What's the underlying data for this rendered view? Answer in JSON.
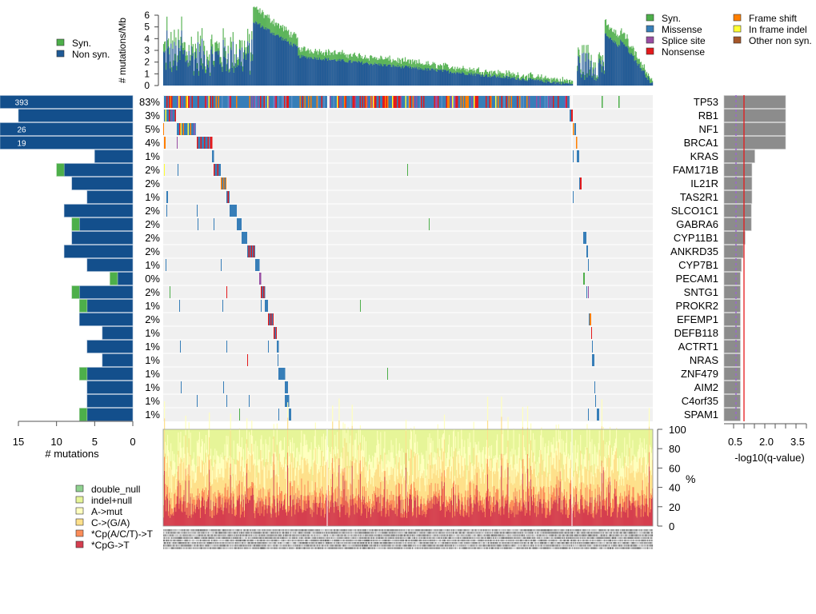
{
  "chart_data": [
    {
      "id": "mutation_burden",
      "type": "bar",
      "stacked": true,
      "ylabel": "# mutations/Mb",
      "ylim": [
        0,
        6
      ],
      "yticks": [
        "0",
        "1",
        "2",
        "3",
        "4",
        "5",
        "6"
      ],
      "legend": {
        "position": "top-left",
        "entries": [
          {
            "label": "Syn.",
            "color": "#4daf4a"
          },
          {
            "label": "Non syn.",
            "color": "#1f5a96"
          }
        ]
      },
      "sample_count": 600,
      "profile_description": "Per-sample stacked bars sorted by oncoprint order; values are approximate profile segments",
      "segments": [
        {
          "samples": "1-50",
          "nonsyn_range": [
            0.8,
            4.8
          ],
          "total_peak": 6.3
        },
        {
          "samples": "50-110",
          "nonsyn_range": [
            1.0,
            4.5
          ],
          "total_peak": 5.9
        },
        {
          "samples": "110-165",
          "nonsyn_range": [
            2.6,
            5.3
          ],
          "total_peak": 6.6
        },
        {
          "samples": "165-505",
          "nonsyn_range": [
            0.1,
            2.6
          ],
          "total_peak": 3.3
        },
        {
          "samples": "505-560",
          "nonsyn_range": [
            0.2,
            3.4
          ],
          "total_peak": 4.4
        },
        {
          "samples": "560-600",
          "nonsyn_range": [
            0.1,
            4.5
          ],
          "total_peak": 5.3
        }
      ]
    },
    {
      "id": "oncoprint",
      "type": "heatmap",
      "legend": {
        "position": "top-right",
        "entries": [
          {
            "label": "Syn.",
            "color": "#4daf4a"
          },
          {
            "label": "Missense",
            "color": "#377eb8"
          },
          {
            "label": "Splice site",
            "color": "#984ea3"
          },
          {
            "label": "Nonsense",
            "color": "#e41a1c"
          },
          {
            "label": "Frame shift",
            "color": "#ff7f00"
          },
          {
            "label": "In frame indel",
            "color": "#ffff33"
          },
          {
            "label": "Other non syn.",
            "color": "#a65628"
          }
        ]
      },
      "genes": [
        "TP53",
        "RB1",
        "NF1",
        "BRCA1",
        "KRAS",
        "FAM171B",
        "IL21R",
        "TAS2R1",
        "SLCO1C1",
        "GABRA6",
        "CYP11B1",
        "ANKRD35",
        "CYP7B1",
        "PECAM1",
        "SNTG1",
        "PROKR2",
        "EFEMP1",
        "DEFB118",
        "ACTRT1",
        "NRAS",
        "ZNF479",
        "AIM2",
        "C4orf35",
        "SPAM1"
      ],
      "percent_mutated": [
        "83%",
        "3%",
        "5%",
        "4%",
        "1%",
        "2%",
        "2%",
        "1%",
        "2%",
        "2%",
        "2%",
        "2%",
        "1%",
        "0%",
        "2%",
        "1%",
        "2%",
        "1%",
        "1%",
        "1%",
        "1%",
        "1%",
        "1%",
        "1%"
      ]
    },
    {
      "id": "gene_mutation_counts",
      "type": "bar",
      "orientation": "horizontal",
      "xlabel": "# mutations",
      "xlim": [
        15,
        0
      ],
      "xticks": [
        "15",
        "10",
        "5",
        "0"
      ],
      "categories": [
        "TP53",
        "RB1",
        "NF1",
        "BRCA1",
        "KRAS",
        "FAM171B",
        "IL21R",
        "TAS2R1",
        "SLCO1C1",
        "GABRA6",
        "CYP11B1",
        "ANKRD35",
        "CYP7B1",
        "PECAM1",
        "SNTG1",
        "PROKR2",
        "EFEMP1",
        "DEFB118",
        "ACTRT1",
        "NRAS",
        "ZNF479",
        "AIM2",
        "C4orf35",
        "SPAM1"
      ],
      "series": [
        {
          "name": "Non syn.",
          "color": "#1f5a96",
          "values": [
            393,
            15,
            26,
            19,
            5,
            9,
            8,
            6,
            9,
            7,
            8,
            9,
            6,
            2,
            7,
            6,
            7,
            4,
            6,
            4,
            6,
            6,
            6,
            6
          ]
        },
        {
          "name": "Syn.",
          "color": "#4daf4a",
          "values": [
            0,
            0,
            0,
            0,
            0,
            1,
            0,
            0,
            0,
            1,
            0,
            0,
            0,
            1,
            1,
            1,
            0,
            0,
            0,
            0,
            1,
            0,
            0,
            1
          ]
        }
      ],
      "bar_labels": [
        "393",
        "",
        "26",
        "19",
        "",
        "",
        "",
        "",
        "",
        "",
        "",
        "",
        "",
        "",
        "",
        "",
        "",
        "",
        "",
        "",
        "",
        "",
        "",
        ""
      ]
    },
    {
      "id": "qvalues",
      "type": "bar",
      "orientation": "horizontal",
      "xlabel": "-log10(q-value)",
      "xticks": [
        "0.5",
        "2.0",
        "3.5"
      ],
      "xlim": [
        0,
        4
      ],
      "categories": [
        "TP53",
        "RB1",
        "NF1",
        "BRCA1",
        "KRAS",
        "FAM171B",
        "IL21R",
        "TAS2R1",
        "SLCO1C1",
        "GABRA6",
        "CYP11B1",
        "ANKRD35",
        "CYP7B1",
        "PECAM1",
        "SNTG1",
        "PROKR2",
        "EFEMP1",
        "DEFB118",
        "ACTRT1",
        "NRAS",
        "ZNF479",
        "AIM2",
        "C4orf35",
        "SPAM1"
      ],
      "values": [
        3.2,
        3.2,
        3.2,
        3.2,
        1.6,
        1.45,
        1.45,
        1.45,
        1.42,
        1.42,
        1.1,
        1.0,
        0.9,
        0.85,
        0.85,
        0.85,
        0.85,
        0.85,
        0.85,
        0.85,
        0.85,
        0.85,
        0.85,
        0.85
      ],
      "reference_lines": [
        {
          "value": 0.5,
          "style": "dashed",
          "color": "#9966cc"
        },
        {
          "value": 1.0,
          "style": "solid",
          "color": "#e41a1c"
        }
      ]
    },
    {
      "id": "mutation_spectrum",
      "type": "area",
      "stacked": true,
      "ylabel": "%",
      "ylim": [
        0,
        100
      ],
      "yticks": [
        "0",
        "20",
        "40",
        "60",
        "80",
        "100"
      ],
      "legend": {
        "position": "bottom-left",
        "entries": [
          {
            "label": "double_null",
            "color": "#8fd18f"
          },
          {
            "label": "indel+null",
            "color": "#e6f598"
          },
          {
            "label": "A->mut",
            "color": "#ffffbf"
          },
          {
            "label": "C->(G/A)",
            "color": "#fee08b"
          },
          {
            "label": "*Cp(A/C/T)->T",
            "color": "#fc8d59"
          },
          {
            "label": "*CpG->T",
            "color": "#d53e4f"
          }
        ]
      },
      "approx_mean_composition_pct": {
        "*CpG->T": 22,
        "*Cp(A/C/T)->T": 12,
        "C->(G/A)": 30,
        "A->mut": 20,
        "indel+null": 14,
        "double_null": 2
      }
    }
  ]
}
